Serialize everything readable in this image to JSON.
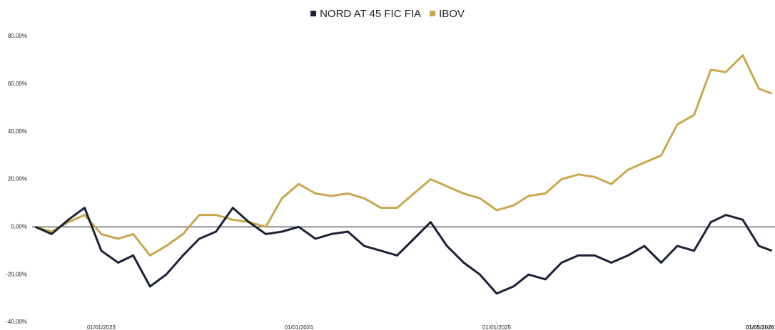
{
  "chart_data": {
    "type": "line",
    "x": [
      "2022-09-01",
      "2022-10-01",
      "2022-11-01",
      "2022-12-01",
      "2023-01-01",
      "2023-02-01",
      "2023-03-01",
      "2023-04-01",
      "2023-05-01",
      "2023-06-01",
      "2023-07-01",
      "2023-08-01",
      "2023-09-01",
      "2023-10-01",
      "2023-11-01",
      "2023-12-01",
      "2024-01-01",
      "2024-02-01",
      "2024-03-01",
      "2024-04-01",
      "2024-05-01",
      "2024-06-01",
      "2024-07-01",
      "2024-08-01",
      "2024-09-01",
      "2024-10-01",
      "2024-11-01",
      "2024-12-01",
      "2025-01-01",
      "2025-02-01",
      "2025-03-01",
      "2025-04-01",
      "2025-05-01",
      "2025-06-01",
      "2025-07-01",
      "2025-08-01",
      "2025-09-01",
      "2025-10-01",
      "2025-11-01",
      "2025-12-01",
      "2026-01-01",
      "2026-02-01",
      "2026-03-01",
      "2026-04-01",
      "2026-05-01",
      "2026-05-25"
    ],
    "series": [
      {
        "name": "NORD AT 45 FIC FIA",
        "color": "#1c2236",
        "values": [
          0,
          -3,
          3,
          8,
          -10,
          -15,
          -12,
          -25,
          -20,
          -12,
          -5,
          -2,
          8,
          2,
          -3,
          -2,
          0,
          -5,
          -3,
          -2,
          -8,
          -10,
          -12,
          -5,
          2,
          -8,
          -15,
          -20,
          -28,
          -25,
          -20,
          -22,
          -15,
          -12,
          -12,
          -15,
          -12,
          -8,
          -15,
          -8,
          -10,
          2,
          5,
          3,
          -8,
          -10
        ]
      },
      {
        "name": "IBOV",
        "color": "#c8a850",
        "values": [
          0,
          -2,
          2,
          5,
          -3,
          -5,
          -3,
          -12,
          -8,
          -3,
          5,
          5,
          3,
          2,
          0,
          12,
          18,
          14,
          13,
          14,
          12,
          8,
          8,
          14,
          20,
          17,
          14,
          12,
          7,
          9,
          13,
          14,
          20,
          22,
          21,
          18,
          24,
          27,
          30,
          43,
          47,
          66,
          65,
          72,
          58,
          56
        ]
      }
    ],
    "xlim": [
      "2022-08-26",
      "2026-05-28"
    ],
    "xticks": [
      {
        "value": "2023-01-01",
        "label": "01/01/2023"
      },
      {
        "value": "2024-01-01",
        "label": "01/01/2024"
      },
      {
        "value": "2025-01-01",
        "label": "01/01/2025"
      },
      {
        "value": "2026-05-01",
        "label": "01/05/2026"
      }
    ],
    "ylim": [
      -40,
      80
    ],
    "yticks": [
      {
        "value": -40,
        "label": "-40,00%"
      },
      {
        "value": -20,
        "label": "-20,00%"
      },
      {
        "value": 0,
        "label": "0,00%"
      },
      {
        "value": 20,
        "label": "20,00%"
      },
      {
        "value": 40,
        "label": "40,00%"
      },
      {
        "value": 60,
        "label": "60,00%"
      },
      {
        "value": 80,
        "label": "80,00%"
      }
    ],
    "legend": "top"
  }
}
